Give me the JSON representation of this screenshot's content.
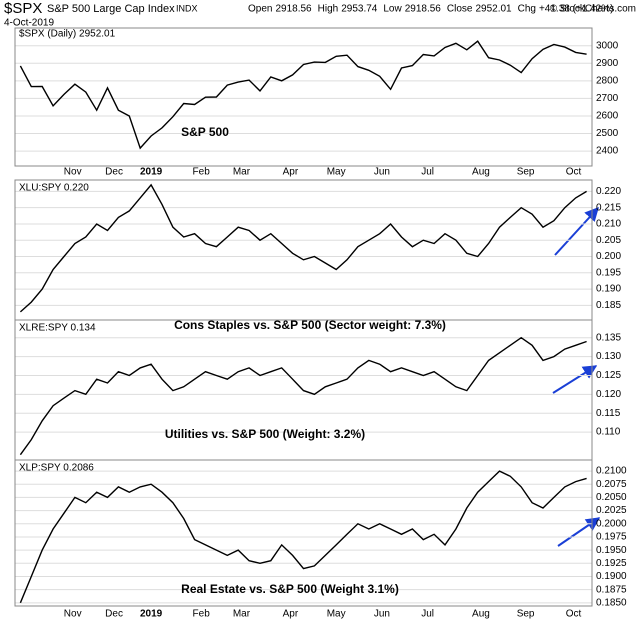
{
  "header": {
    "symbol": "$SPX",
    "name": "S&P 500 Large Cap Index",
    "exchange": "INDX",
    "date": "4-Oct-2019",
    "quote": [
      {
        "label": "Open",
        "value": "2918.56"
      },
      {
        "label": "High",
        "value": "2953.74"
      },
      {
        "label": "Low",
        "value": "2918.56"
      },
      {
        "label": "Close",
        "value": "2952.01"
      },
      {
        "label": "Chg",
        "value": "+41.38 (+1.42%)"
      }
    ],
    "copyright": "© StockCharts.com"
  },
  "chart_data": [
    {
      "type": "line",
      "label": "$SPX (Daily) 2952.01",
      "annotation": "S&P 500",
      "color": "#000000",
      "values": [
        2885,
        2767,
        2768,
        2658,
        2723,
        2781,
        2736,
        2633,
        2760,
        2633,
        2600,
        2417,
        2486,
        2532,
        2596,
        2671,
        2665,
        2707,
        2708,
        2776,
        2793,
        2804,
        2743,
        2822,
        2800,
        2834,
        2893,
        2907,
        2905,
        2940,
        2946,
        2881,
        2860,
        2826,
        2752,
        2873,
        2887,
        2950,
        2942,
        2990,
        3014,
        2977,
        3026,
        2932,
        2919,
        2889,
        2847,
        2926,
        2979,
        3007,
        2992,
        2962,
        2952
      ],
      "xlim": [
        -0.5,
        52.5
      ],
      "ylim": [
        2315,
        3101
      ],
      "yticks": [
        2400,
        2500,
        2600,
        2700,
        2800,
        2900,
        3000
      ],
      "grid": true,
      "xticks": [
        {
          "value": 4.8,
          "label": "Nov"
        },
        {
          "value": 8.6,
          "label": "Dec"
        },
        {
          "value": 12.0,
          "label": "2019"
        },
        {
          "value": 16.6,
          "label": "Feb"
        },
        {
          "value": 20.3,
          "label": "Mar"
        },
        {
          "value": 24.8,
          "label": "Apr"
        },
        {
          "value": 29.0,
          "label": "May"
        },
        {
          "value": 33.2,
          "label": "Jun"
        },
        {
          "value": 37.4,
          "label": "Jul"
        },
        {
          "value": 42.3,
          "label": "Aug"
        },
        {
          "value": 46.4,
          "label": "Sep"
        },
        {
          "value": 50.8,
          "label": "Oct"
        }
      ]
    },
    {
      "type": "line",
      "label": "XLU:SPY 0.220",
      "annotation": "Cons Staples vs. S&P 500 (Sector weight: 7.3%)",
      "color": "#000000",
      "values": [
        0.183,
        0.186,
        0.19,
        0.196,
        0.2,
        0.204,
        0.206,
        0.21,
        0.208,
        0.212,
        0.214,
        0.218,
        0.222,
        0.216,
        0.209,
        0.206,
        0.207,
        0.204,
        0.203,
        0.206,
        0.209,
        0.208,
        0.205,
        0.207,
        0.204,
        0.201,
        0.199,
        0.2,
        0.198,
        0.196,
        0.199,
        0.203,
        0.205,
        0.207,
        0.21,
        0.206,
        0.203,
        0.205,
        0.204,
        0.207,
        0.205,
        0.201,
        0.2,
        0.204,
        0.209,
        0.212,
        0.215,
        0.213,
        0.209,
        0.211,
        0.215,
        0.218,
        0.22
      ],
      "xlim": [
        -0.5,
        52.5
      ],
      "ylim": [
        0.1805,
        0.2235
      ],
      "grid": true,
      "yticks": [
        0.185,
        {
          "value": 0.19,
          "label": "0.190"
        },
        0.195,
        {
          "value": 0.2,
          "label": "0.200"
        },
        0.205,
        {
          "value": 0.21,
          "label": "0.210"
        },
        0.215,
        {
          "value": 0.22,
          "label": "0.220"
        }
      ]
    },
    {
      "type": "line",
      "label": "XLRE:SPY 0.134",
      "annotation": "Utilities vs. S&P 500 (Weight: 3.2%)",
      "color": "#000000",
      "values": [
        0.104,
        0.108,
        0.113,
        0.117,
        0.119,
        0.121,
        0.12,
        0.124,
        0.123,
        0.126,
        0.125,
        0.127,
        0.128,
        0.124,
        0.121,
        0.122,
        0.124,
        0.126,
        0.125,
        0.124,
        0.126,
        0.127,
        0.125,
        0.126,
        0.127,
        0.124,
        0.121,
        0.12,
        0.122,
        0.123,
        0.124,
        0.127,
        0.129,
        0.128,
        0.126,
        0.127,
        0.126,
        0.125,
        0.126,
        0.124,
        0.122,
        0.121,
        0.125,
        0.129,
        0.131,
        0.133,
        0.135,
        0.133,
        0.129,
        0.13,
        0.132,
        0.133,
        0.134
      ],
      "xlim": [
        -0.5,
        52.5
      ],
      "ylim": [
        0.1026,
        0.1397
      ],
      "grid": true,
      "yticks": [
        {
          "value": 0.11,
          "label": "0.110"
        },
        0.115,
        {
          "value": 0.12,
          "label": "0.120"
        },
        0.125,
        {
          "value": 0.13,
          "label": "0.130"
        },
        0.135
      ]
    },
    {
      "type": "line",
      "label": "XLP:SPY 0.2086",
      "annotation": "Real Estate vs. S&P 500 (Weight 3.1%)",
      "color": "#000000",
      "values": [
        0.185,
        0.19,
        0.195,
        0.199,
        0.202,
        0.205,
        0.204,
        0.206,
        0.205,
        0.207,
        0.206,
        0.207,
        0.2075,
        0.206,
        0.204,
        0.201,
        0.197,
        0.196,
        0.195,
        0.194,
        0.195,
        0.193,
        0.1925,
        0.193,
        0.196,
        0.194,
        0.1915,
        0.192,
        0.194,
        0.196,
        0.198,
        0.2,
        0.199,
        0.2,
        0.199,
        0.198,
        0.199,
        0.197,
        0.198,
        0.196,
        0.199,
        0.203,
        0.206,
        0.208,
        0.21,
        0.209,
        0.207,
        0.204,
        0.203,
        0.205,
        0.207,
        0.208,
        0.2086
      ],
      "xlim": [
        -0.5,
        52.5
      ],
      "ylim": [
        0.1844,
        0.2121
      ],
      "grid": true,
      "yticks": [
        {
          "value": 0.185,
          "label": "0.1850"
        },
        0.1875,
        {
          "value": 0.19,
          "label": "0.1900"
        },
        0.1925,
        {
          "value": 0.195,
          "label": "0.1950"
        },
        0.1975,
        {
          "value": 0.2,
          "label": "0.2000"
        },
        0.2025,
        {
          "value": 0.205,
          "label": "0.2050"
        },
        0.2075,
        {
          "value": 0.21,
          "label": "0.2100"
        }
      ],
      "xticks": [
        {
          "value": 4.8,
          "label": "Nov"
        },
        {
          "value": 8.6,
          "label": "Dec"
        },
        {
          "value": 12.0,
          "label": "2019"
        },
        {
          "value": 16.6,
          "label": "Feb"
        },
        {
          "value": 20.3,
          "label": "Mar"
        },
        {
          "value": 24.8,
          "label": "Apr"
        },
        {
          "value": 29.0,
          "label": "May"
        },
        {
          "value": 33.2,
          "label": "Jun"
        },
        {
          "value": 37.4,
          "label": "Jul"
        },
        {
          "value": 42.3,
          "label": "Aug"
        },
        {
          "value": 46.4,
          "label": "Sep"
        },
        {
          "value": 50.8,
          "label": "Oct"
        }
      ]
    }
  ]
}
